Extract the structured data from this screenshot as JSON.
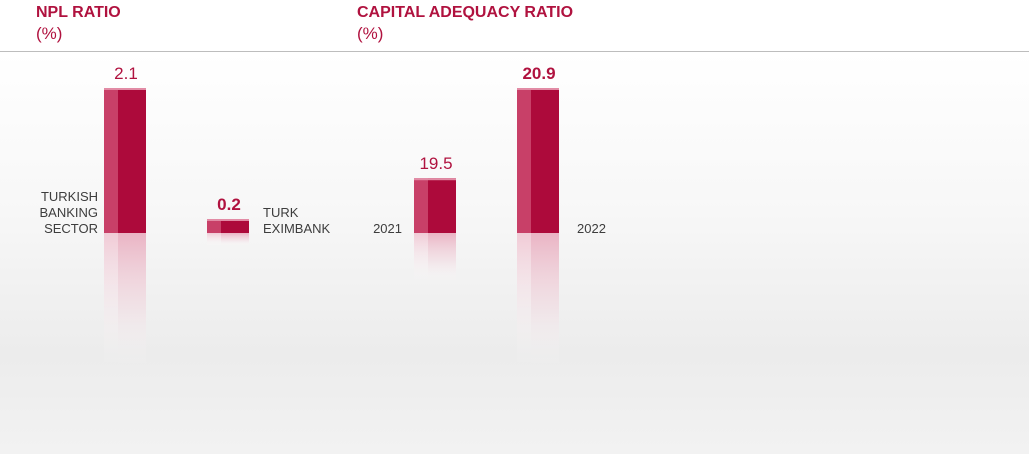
{
  "charts": {
    "npl": {
      "title": "NPL RATIO",
      "unit": "(%)"
    },
    "car": {
      "title": "CAPITAL ADEQUACY RATIO",
      "unit": "(%)"
    }
  },
  "colors": {
    "bar_front": "#ad0a3b",
    "bar_side": "#c84068",
    "bar_top": "#e28ba5",
    "value_text": "#b0123f",
    "label_text": "#3d3d3d"
  },
  "chart_data": [
    {
      "type": "bar",
      "title": "NPL RATIO",
      "unit": "(%)",
      "categories": [
        "TURKISH BANKING SECTOR",
        "TURK EXIMBANK"
      ],
      "category_lines": [
        [
          "TURKISH",
          "BANKING",
          "SECTOR"
        ],
        [
          "TURK",
          "EXIMBANK"
        ]
      ],
      "values": [
        2.1,
        0.2
      ],
      "value_labels": [
        "2.1",
        "0.2"
      ],
      "highlight": [
        false,
        true
      ]
    },
    {
      "type": "bar",
      "title": "CAPITAL ADEQUACY RATIO",
      "unit": "(%)",
      "categories": [
        "2021",
        "2022"
      ],
      "category_lines": [
        [
          "2021"
        ],
        [
          "2022"
        ]
      ],
      "values": [
        19.5,
        20.9
      ],
      "value_labels": [
        "19.5",
        "20.9"
      ],
      "highlight": [
        false,
        true
      ]
    }
  ]
}
